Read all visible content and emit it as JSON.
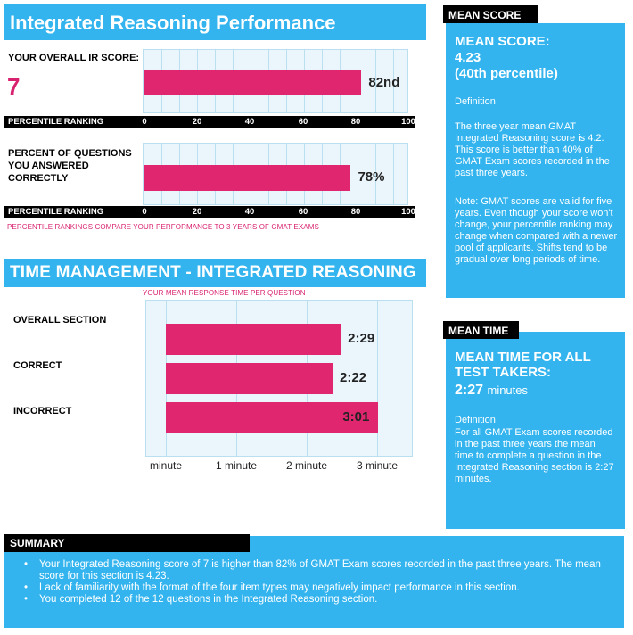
{
  "header": {
    "title": "Integrated Reasoning Performance"
  },
  "overall_score": {
    "label": "YOUR OVERALL IR SCORE:",
    "score": "7",
    "percentile_label": "82nd",
    "percentile_value": 82
  },
  "percent_correct": {
    "label_line1": "PERCENT OF QUESTIONS",
    "label_line2": "YOU ANSWERED",
    "label_line3": "CORRECTLY",
    "value_label": "78%",
    "value": 78
  },
  "percentile_axis": {
    "title": "PERCENTILE RANKING",
    "ticks": [
      "0",
      "20",
      "40",
      "60",
      "80",
      "100"
    ]
  },
  "note": "PERCENTILE RANKINGS COMPARE YOUR PERFORMANCE TO 3 YEARS OF GMAT EXAMS",
  "time_management": {
    "title": "TIME MANAGEMENT - INTEGRATED REASONING",
    "subtitle": "YOUR MEAN RESPONSE TIME PER QUESTION",
    "rows": [
      {
        "label": "OVERALL SECTION",
        "time": "2:29",
        "minutes": 2.483
      },
      {
        "label": "CORRECT",
        "time": "2:22",
        "minutes": 2.367
      },
      {
        "label": "INCORRECT",
        "time": "3:01",
        "minutes": 3.017
      }
    ],
    "axis_ticks": [
      "minute",
      "1 minute",
      "2 minute",
      "3 minute"
    ]
  },
  "mean_score_panel": {
    "tab": "MEAN SCORE",
    "heading": "MEAN SCORE:",
    "value": "4.23",
    "percentile": "(40th percentile)",
    "definition_label": "Definition",
    "definition": "The three year mean GMAT Integrated Reasoning score is 4.2. This score is better than 40% of GMAT Exam scores recorded in the past three years.",
    "note": "Note:  GMAT scores are valid for five years. Even though your score won't change, your percentile ranking may change when compared with a newer pool of applicants.  Shifts tend to be gradual over long periods of time."
  },
  "mean_time_panel": {
    "tab": "MEAN TIME",
    "heading_line1": "MEAN TIME FOR ALL",
    "heading_line2": "TEST TAKERS:",
    "value": "2:27",
    "unit": "minutes",
    "definition_label": "Definition",
    "definition": "For all GMAT Exam scores recorded in the past three years the mean time to complete a question in the Integrated Reasoning  section is 2:27 minutes."
  },
  "summary": {
    "tab": "SUMMARY",
    "items": [
      "Your Integrated Reasoning score of 7 is higher than 82% of GMAT Exam scores recorded in the past three years. The mean score for this section is 4.23.",
      "Lack of familiarity with the format of the four item types may negatively impact performance in this section.",
      "You completed 12 of the 12 questions in the Integrated Reasoning section."
    ]
  },
  "colors": {
    "accent_blue": "#33b4ee",
    "bar_pink": "#e0266f",
    "score_pink": "#d9226f"
  }
}
